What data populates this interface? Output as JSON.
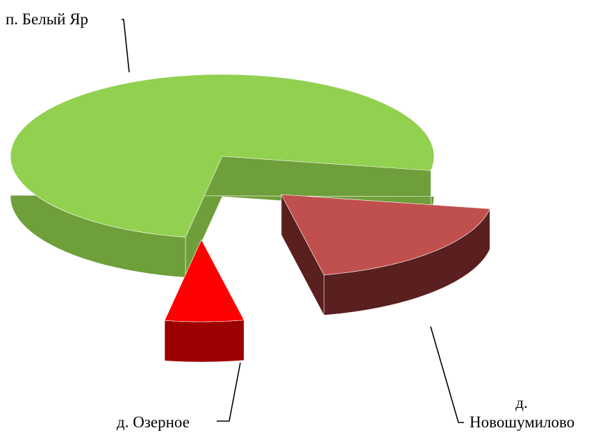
{
  "chart_data": {
    "type": "pie3d",
    "categories": [
      "д. Новошумилово",
      "д. Озерное",
      "п. Белый Яр"
    ],
    "values": [
      19,
      6,
      75
    ],
    "colors": [
      "#c0504d",
      "#ff0000",
      "#92d050"
    ],
    "side_colors": [
      "#5a1f1f",
      "#9c0000",
      "#6f9f3a"
    ]
  }
}
